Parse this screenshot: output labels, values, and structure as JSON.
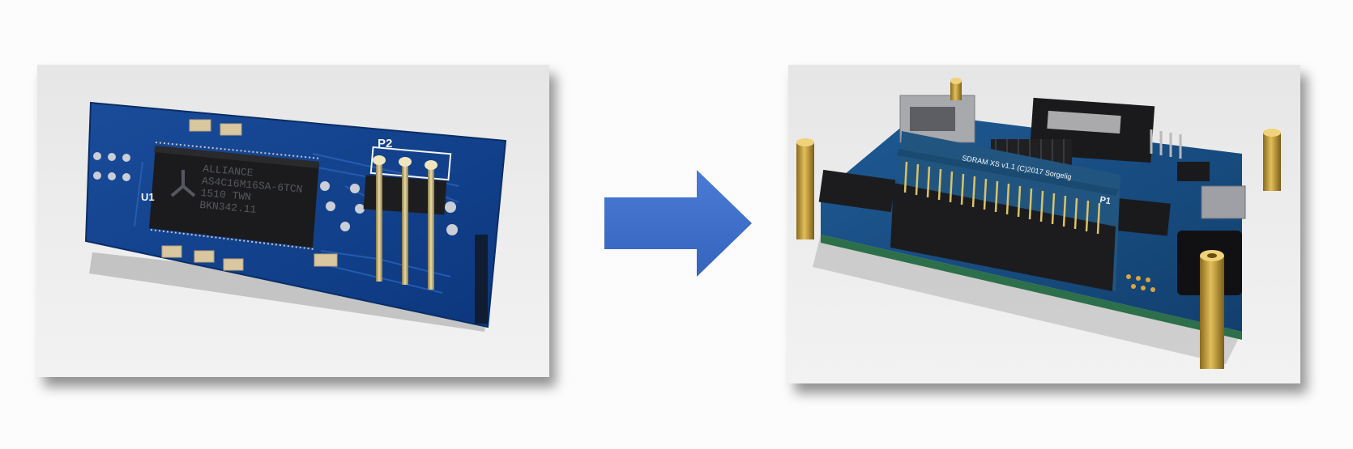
{
  "left_photo": {
    "pcb_labels": {
      "u1": "U1",
      "p2": "P2"
    },
    "chip_marking": [
      "ALLIANCE",
      "AS4C16M16SA-6TCN",
      "1510 TWN",
      "BKN342.11"
    ],
    "colors": {
      "pcb": "#0f3f8c",
      "chip": "#1b1b1d",
      "background": "#e8e8e8"
    }
  },
  "right_photo": {
    "module_silk": "SDRAM XS v1.1 (C)2017 Sorgelig",
    "header_label": "P1",
    "colors": {
      "pcb": "#174f86",
      "standoff": "#c9a13a",
      "header": "#1c1c1e"
    }
  },
  "arrow": {
    "icon": "right-arrow-icon",
    "color": "#3f6fc9"
  }
}
